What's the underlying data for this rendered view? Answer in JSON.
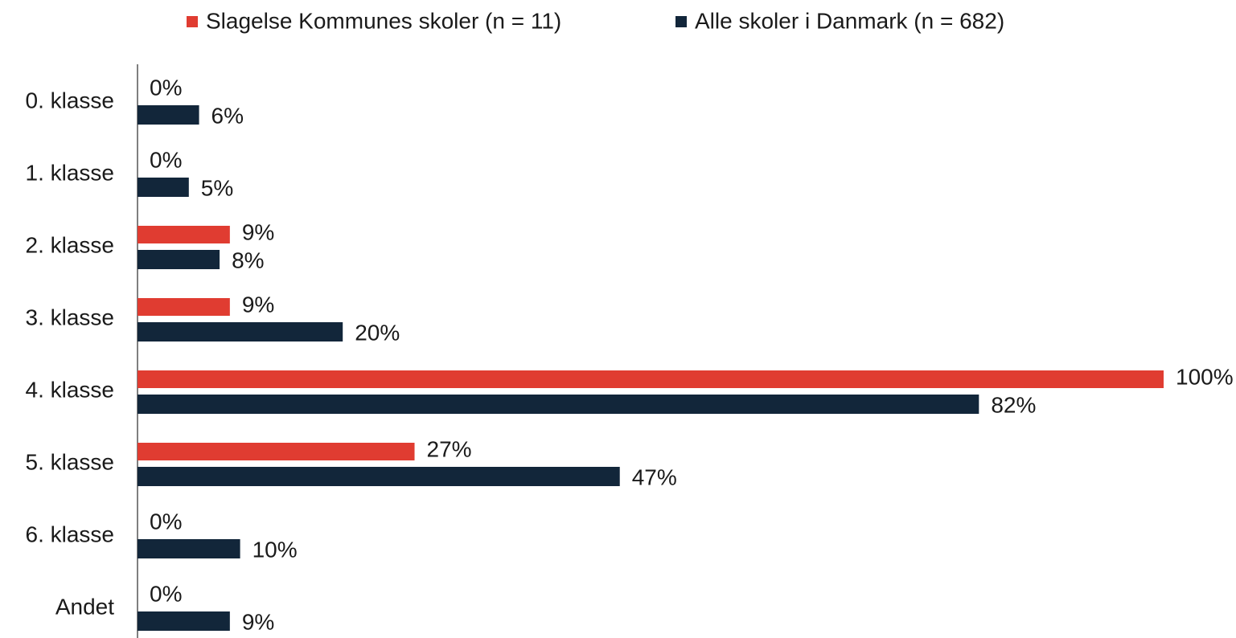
{
  "chart_data": {
    "type": "bar",
    "orientation": "horizontal",
    "categories": [
      "0. klasse",
      "1. klasse",
      "2. klasse",
      "3. klasse",
      "4. klasse",
      "5. klasse",
      "6. klasse",
      "Andet"
    ],
    "series": [
      {
        "name": "Slagelse Kommunes skoler (n = 11)",
        "color": "#e03c31",
        "values": [
          0,
          0,
          9,
          9,
          100,
          27,
          0,
          0
        ],
        "value_labels": [
          "0%",
          "0%",
          "9%",
          "9%",
          "100%",
          "27%",
          "0%",
          "0%"
        ]
      },
      {
        "name": "Alle skoler i Danmark (n = 682)",
        "color": "#12263a",
        "values": [
          6,
          5,
          8,
          20,
          82,
          47,
          10,
          9
        ],
        "value_labels": [
          "6%",
          "5%",
          "8%",
          "20%",
          "82%",
          "47%",
          "10%",
          "9%"
        ]
      }
    ],
    "xlim": [
      0,
      100
    ],
    "legend": "top"
  }
}
